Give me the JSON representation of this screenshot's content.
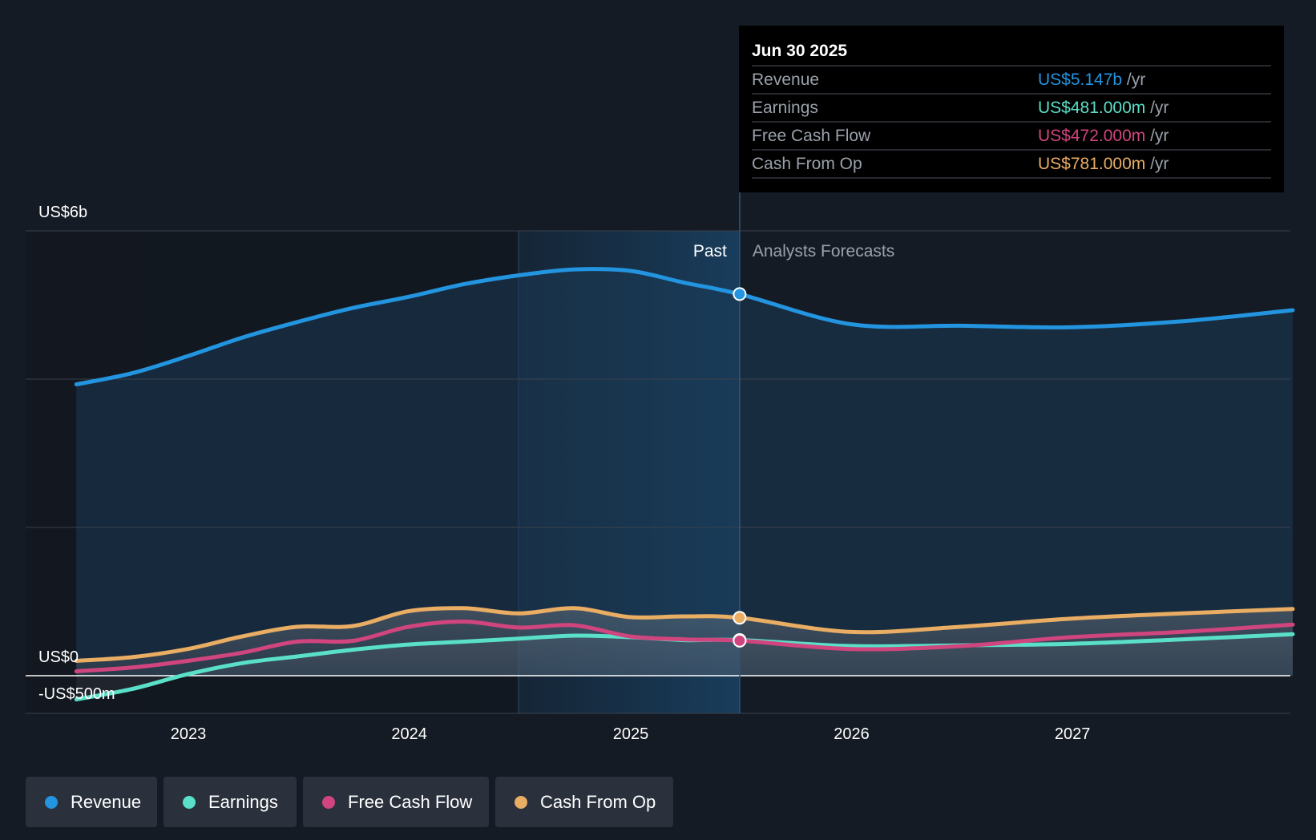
{
  "chart_data": {
    "type": "line",
    "x_axis_ticks": [
      "2023",
      "2024",
      "2025",
      "2026",
      "2027"
    ],
    "y_axis_labels": [
      "US$6b",
      "US$0",
      "-US$500m"
    ],
    "ylim": [
      -500,
      6000
    ],
    "y_unit": "US$ millions",
    "grid": true,
    "past_label": "Past",
    "forecast_label": "Analysts Forecasts",
    "divider_date": "2025-06-30",
    "series": [
      {
        "name": "Revenue",
        "color": "#2394df",
        "points": [
          [
            "2022-06-30",
            3930
          ],
          [
            "2022-09-30",
            4080
          ],
          [
            "2022-12-31",
            4310
          ],
          [
            "2023-03-31",
            4560
          ],
          [
            "2023-06-30",
            4770
          ],
          [
            "2023-09-30",
            4960
          ],
          [
            "2023-12-31",
            5110
          ],
          [
            "2024-03-31",
            5280
          ],
          [
            "2024-06-30",
            5400
          ],
          [
            "2024-09-30",
            5480
          ],
          [
            "2024-12-31",
            5460
          ],
          [
            "2025-03-31",
            5300
          ],
          [
            "2025-06-30",
            5147
          ],
          [
            "2025-12-31",
            4740
          ],
          [
            "2026-06-30",
            4720
          ],
          [
            "2026-12-31",
            4700
          ],
          [
            "2027-06-30",
            4780
          ],
          [
            "2027-12-31",
            4930
          ]
        ]
      },
      {
        "name": "Earnings",
        "color": "#5ae0c8",
        "points": [
          [
            "2022-06-30",
            -320
          ],
          [
            "2022-09-30",
            -180
          ],
          [
            "2022-12-31",
            20
          ],
          [
            "2023-03-31",
            170
          ],
          [
            "2023-06-30",
            260
          ],
          [
            "2023-09-30",
            350
          ],
          [
            "2023-12-31",
            420
          ],
          [
            "2024-03-31",
            460
          ],
          [
            "2024-06-30",
            500
          ],
          [
            "2024-09-30",
            540
          ],
          [
            "2024-12-31",
            520
          ],
          [
            "2025-03-31",
            480
          ],
          [
            "2025-06-30",
            481
          ],
          [
            "2025-12-31",
            400
          ],
          [
            "2026-06-30",
            410
          ],
          [
            "2026-12-31",
            430
          ],
          [
            "2027-06-30",
            490
          ],
          [
            "2027-12-31",
            560
          ]
        ]
      },
      {
        "name": "Free Cash Flow",
        "color": "#d1457f",
        "points": [
          [
            "2022-06-30",
            60
          ],
          [
            "2022-09-30",
            110
          ],
          [
            "2022-12-31",
            200
          ],
          [
            "2023-03-31",
            310
          ],
          [
            "2023-06-30",
            460
          ],
          [
            "2023-09-30",
            470
          ],
          [
            "2023-12-31",
            660
          ],
          [
            "2024-03-31",
            730
          ],
          [
            "2024-06-30",
            650
          ],
          [
            "2024-09-30",
            680
          ],
          [
            "2024-12-31",
            530
          ],
          [
            "2025-03-31",
            490
          ],
          [
            "2025-06-30",
            472
          ],
          [
            "2025-12-31",
            360
          ],
          [
            "2026-06-30",
            400
          ],
          [
            "2026-12-31",
            520
          ],
          [
            "2027-06-30",
            590
          ],
          [
            "2027-12-31",
            690
          ]
        ]
      },
      {
        "name": "Cash From Op",
        "color": "#e9ad63",
        "points": [
          [
            "2022-06-30",
            200
          ],
          [
            "2022-09-30",
            250
          ],
          [
            "2022-12-31",
            360
          ],
          [
            "2023-03-31",
            530
          ],
          [
            "2023-06-30",
            660
          ],
          [
            "2023-09-30",
            670
          ],
          [
            "2023-12-31",
            870
          ],
          [
            "2024-03-31",
            910
          ],
          [
            "2024-06-30",
            840
          ],
          [
            "2024-09-30",
            910
          ],
          [
            "2024-12-31",
            790
          ],
          [
            "2025-03-31",
            800
          ],
          [
            "2025-06-30",
            781
          ],
          [
            "2025-12-31",
            590
          ],
          [
            "2026-06-30",
            660
          ],
          [
            "2026-12-31",
            770
          ],
          [
            "2027-06-30",
            840
          ],
          [
            "2027-12-31",
            900
          ]
        ]
      }
    ]
  },
  "tooltip": {
    "date": "Jun 30 2025",
    "rows": [
      {
        "label": "Revenue",
        "value": "US$5.147b",
        "unit": "/yr",
        "color": "#2394df"
      },
      {
        "label": "Earnings",
        "value": "US$481.000m",
        "unit": "/yr",
        "color": "#5ae0c8"
      },
      {
        "label": "Free Cash Flow",
        "value": "US$472.000m",
        "unit": "/yr",
        "color": "#d1457f"
      },
      {
        "label": "Cash From Op",
        "value": "US$781.000m",
        "unit": "/yr",
        "color": "#e9ad63"
      }
    ]
  },
  "legend": [
    {
      "label": "Revenue",
      "color": "#2394df"
    },
    {
      "label": "Earnings",
      "color": "#5ae0c8"
    },
    {
      "label": "Free Cash Flow",
      "color": "#d1457f"
    },
    {
      "label": "Cash From Op",
      "color": "#e9ad63"
    }
  ]
}
